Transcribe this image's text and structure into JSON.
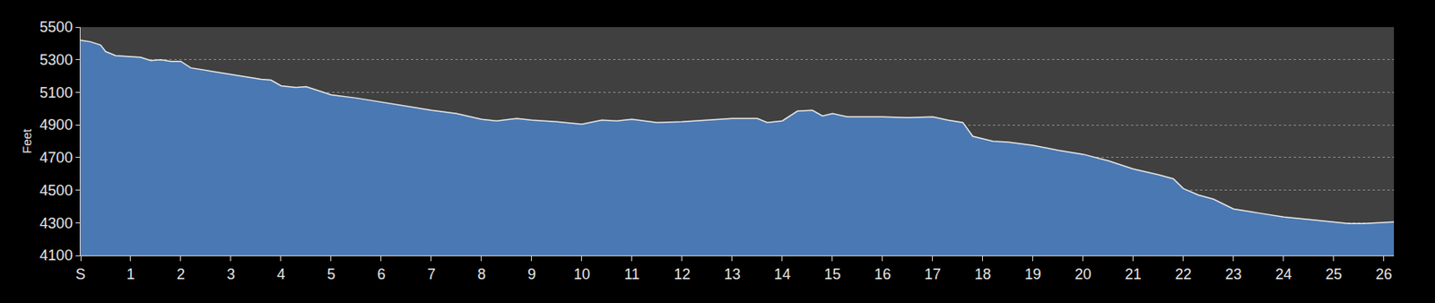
{
  "chart_data": {
    "type": "area",
    "ylabel": "Feet",
    "x": [
      0,
      0.2,
      0.4,
      0.5,
      0.7,
      1,
      1.2,
      1.4,
      1.6,
      1.8,
      2,
      2.2,
      2.5,
      2.8,
      3,
      3.3,
      3.6,
      3.8,
      4,
      4.3,
      4.5,
      4.7,
      5,
      5.5,
      6,
      6.5,
      7,
      7.5,
      8,
      8.3,
      8.7,
      9,
      9.5,
      10,
      10.4,
      10.7,
      11,
      11.5,
      12,
      12.5,
      13,
      13.5,
      13.7,
      14,
      14.3,
      14.6,
      14.8,
      15,
      15.3,
      15.6,
      16,
      16.5,
      17,
      17.3,
      17.6,
      17.8,
      18.2,
      18.5,
      19,
      19.5,
      20,
      20.5,
      21,
      21.5,
      21.8,
      22,
      22.3,
      22.6,
      23,
      23.5,
      24,
      24.5,
      25,
      25.3,
      25.6,
      26,
      26.2
    ],
    "values": [
      5420,
      5410,
      5390,
      5350,
      5325,
      5320,
      5315,
      5295,
      5300,
      5290,
      5290,
      5250,
      5235,
      5220,
      5210,
      5195,
      5180,
      5175,
      5140,
      5130,
      5135,
      5115,
      5085,
      5065,
      5040,
      5015,
      4990,
      4970,
      4935,
      4925,
      4940,
      4930,
      4920,
      4905,
      4930,
      4925,
      4935,
      4915,
      4920,
      4930,
      4940,
      4940,
      4915,
      4925,
      4985,
      4990,
      4955,
      4970,
      4950,
      4950,
      4950,
      4945,
      4950,
      4930,
      4915,
      4830,
      4800,
      4795,
      4775,
      4745,
      4720,
      4680,
      4630,
      4595,
      4570,
      4510,
      4470,
      4445,
      4385,
      4360,
      4335,
      4320,
      4305,
      4295,
      4295,
      4300,
      4305
    ],
    "color": "#4a78b2",
    "xlim": [
      0,
      26.2
    ],
    "xticks": [
      {
        "value": 0,
        "label": "S"
      },
      1,
      2,
      3,
      4,
      5,
      6,
      7,
      8,
      9,
      10,
      11,
      12,
      13,
      14,
      15,
      16,
      17,
      18,
      19,
      20,
      21,
      22,
      23,
      24,
      25,
      26
    ],
    "ylim": [
      4100,
      5500
    ],
    "yticks": [
      4100,
      4300,
      4500,
      4700,
      4900,
      5100,
      5300,
      5500
    ],
    "grid": true
  }
}
